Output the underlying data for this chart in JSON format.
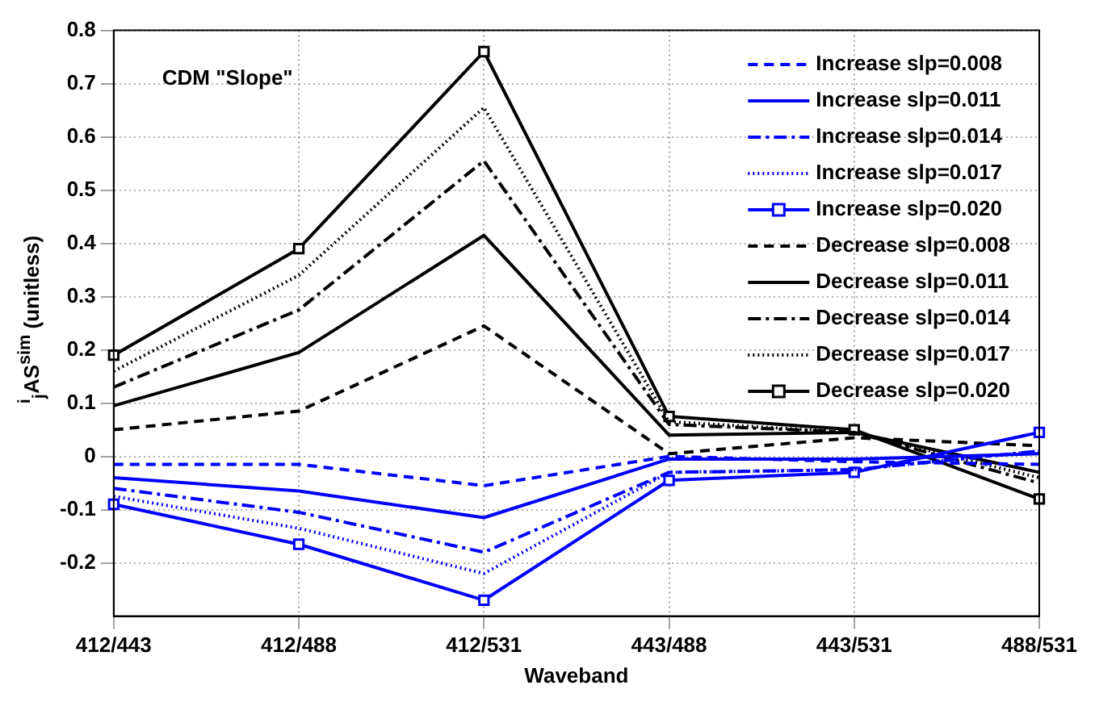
{
  "chart_data": {
    "type": "line",
    "xlabel": "Waveband",
    "ylabel": "$^{i}$$_{j}$AS$^{sim}$ (unitless)",
    "annotations": [
      "CDM \"Slope\""
    ],
    "categories": [
      "412/443",
      "412/488",
      "412/531",
      "443/488",
      "443/531",
      "488/531"
    ],
    "ylim": [
      -0.3,
      0.8
    ],
    "yticks": [
      -0.2,
      -0.1,
      0,
      0.1,
      0.2,
      0.3,
      0.4,
      0.5,
      0.6,
      0.7,
      0.8
    ],
    "grid": true,
    "legend": "top right",
    "series": [
      {
        "name": "Increase slp=0.008",
        "color": "#0000ff",
        "line_style": "dashed",
        "marker": "none",
        "values": [
          -0.015,
          -0.015,
          -0.055,
          0,
          -0.01,
          -0.015
        ]
      },
      {
        "name": "Increase slp=0.011",
        "color": "#0000ff",
        "line_style": "solid",
        "marker": "none",
        "values": [
          -0.04,
          -0.065,
          -0.115,
          -0.005,
          -0.005,
          0.005
        ]
      },
      {
        "name": "Increase slp=0.014",
        "color": "#0000ff",
        "line_style": "dashdot",
        "marker": "none",
        "values": [
          -0.06,
          -0.105,
          -0.18,
          -0.03,
          -0.025,
          0.01
        ]
      },
      {
        "name": "Increase slp=0.017",
        "color": "#0000ff",
        "line_style": "dotted",
        "marker": "none",
        "values": [
          -0.075,
          -0.135,
          -0.22,
          -0.03,
          -0.025,
          0.01
        ]
      },
      {
        "name": "Increase slp=0.020",
        "color": "#0000ff",
        "line_style": "solid",
        "marker": "square",
        "values": [
          -0.09,
          -0.165,
          -0.27,
          -0.045,
          -0.03,
          0.045
        ]
      },
      {
        "name": "Decrease slp=0.008",
        "color": "#000000",
        "line_style": "dashed",
        "marker": "none",
        "values": [
          0.05,
          0.085,
          0.245,
          0.005,
          0.035,
          0.02
        ]
      },
      {
        "name": "Decrease slp=0.011",
        "color": "#000000",
        "line_style": "solid",
        "marker": "none",
        "values": [
          0.095,
          0.195,
          0.415,
          0.04,
          0.045,
          -0.03
        ]
      },
      {
        "name": "Decrease slp=0.014",
        "color": "#000000",
        "line_style": "dashdot",
        "marker": "none",
        "values": [
          0.13,
          0.275,
          0.555,
          0.06,
          0.045,
          -0.05
        ]
      },
      {
        "name": "Decrease slp=0.017",
        "color": "#000000",
        "line_style": "dotted",
        "marker": "none",
        "values": [
          0.16,
          0.34,
          0.655,
          0.065,
          0.045,
          -0.04
        ]
      },
      {
        "name": "Decrease slp=0.020",
        "color": "#000000",
        "line_style": "solid",
        "marker": "square",
        "values": [
          0.19,
          0.39,
          0.76,
          0.075,
          0.05,
          -0.08
        ]
      }
    ]
  }
}
